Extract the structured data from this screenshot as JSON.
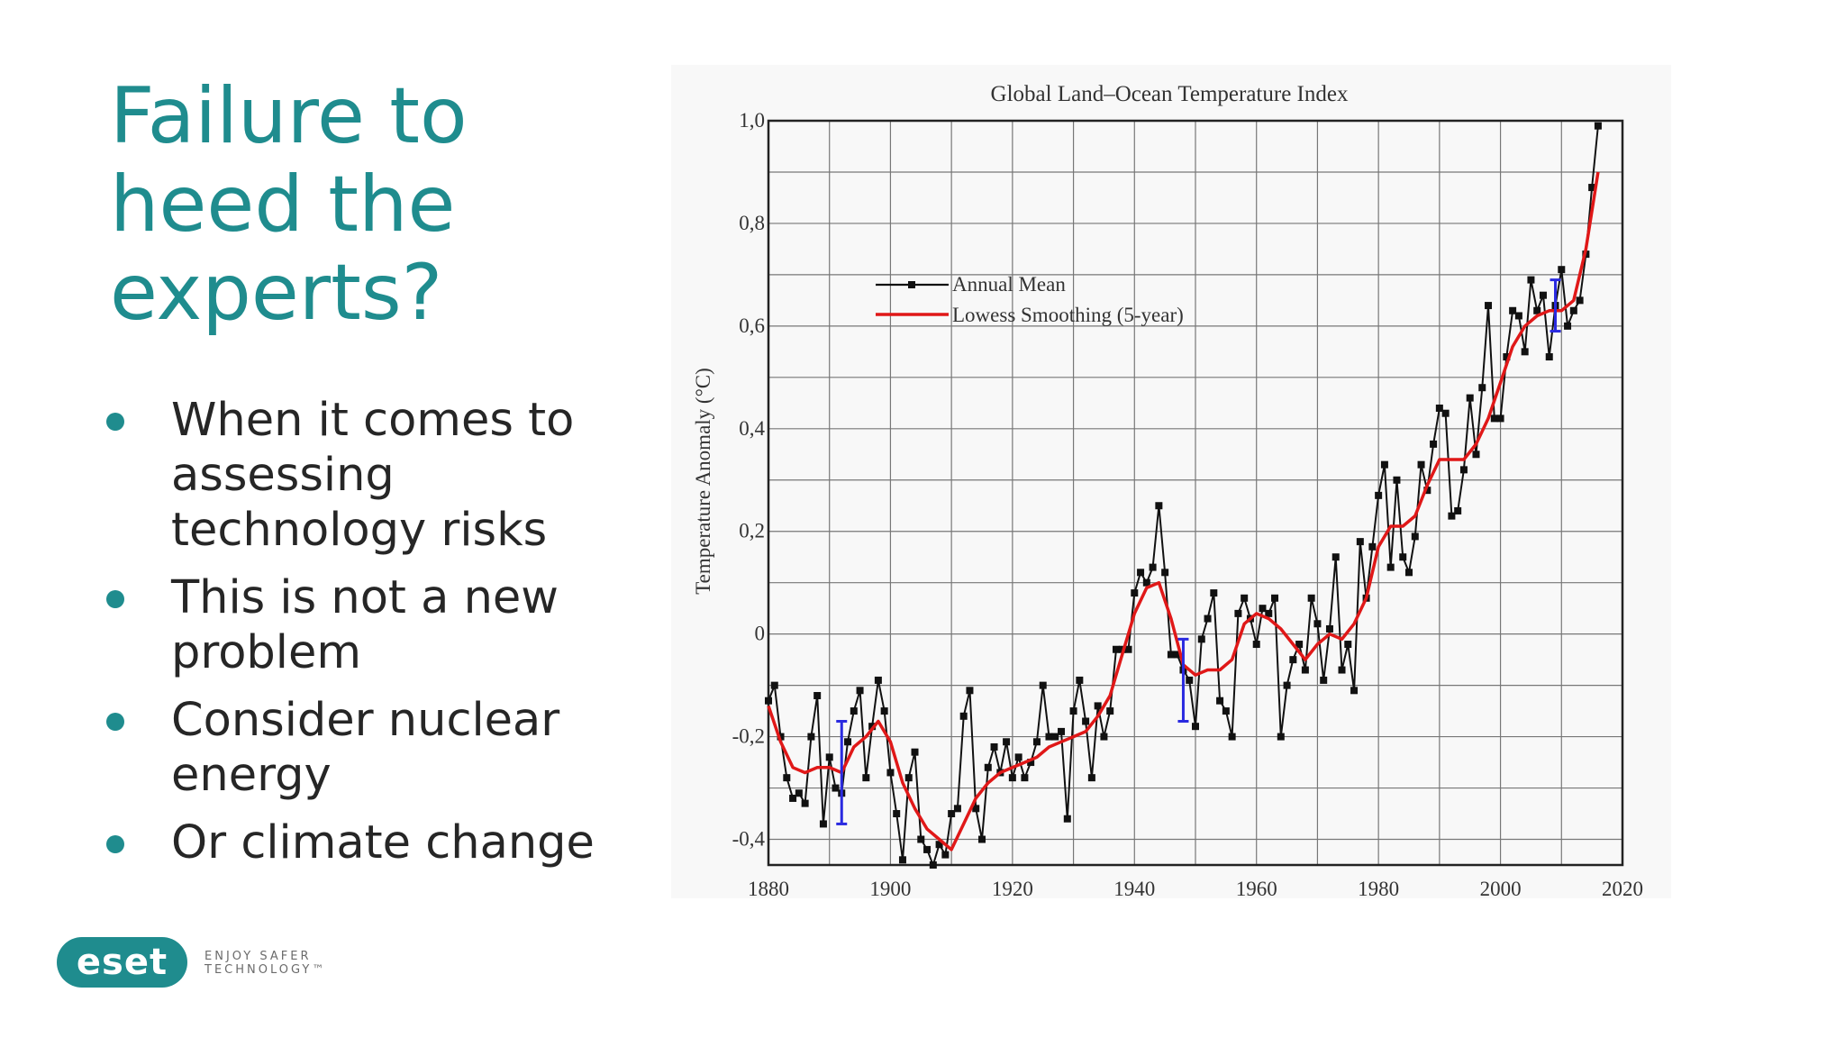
{
  "slide": {
    "title": "Failure to\nheed the\nexperts?",
    "bullets": [
      "When it comes to assessing technology risks",
      "This is not a new problem",
      "Consider nuclear energy",
      "Or climate change"
    ]
  },
  "footer": {
    "logo_text": "eset",
    "tagline_line1": "ENJOY SAFER",
    "tagline_line2": "TECHNOLOGY™"
  },
  "colors": {
    "accent": "#1f8c8e",
    "annual_mean": "#111111",
    "smoothing": "#e01818",
    "uncertainty": "#2a2ae0"
  },
  "chart_data": {
    "type": "line",
    "title": "Global Land–Ocean Temperature Index",
    "ylabel": "Temperature Anomaly (°C)",
    "xlabel": "",
    "xlim": [
      1880,
      2020
    ],
    "ylim": [
      -0.45,
      1.0
    ],
    "x_ticks": [
      1880,
      1900,
      1920,
      1940,
      1960,
      1980,
      2000,
      2020
    ],
    "y_ticks": [
      {
        "value": 1.0,
        "label": "1,0"
      },
      {
        "value": 0.8,
        "label": "0,8"
      },
      {
        "value": 0.6,
        "label": "0,6"
      },
      {
        "value": 0.4,
        "label": "0,4"
      },
      {
        "value": 0.2,
        "label": "0,2"
      },
      {
        "value": 0.0,
        "label": "0"
      },
      {
        "value": -0.2,
        "label": "-0,2"
      },
      {
        "value": -0.4,
        "label": "-0,4"
      }
    ],
    "grid": true,
    "legend_position": "upper-left",
    "series": [
      {
        "name": "Annual Mean",
        "x": [
          1880,
          1881,
          1882,
          1883,
          1884,
          1885,
          1886,
          1887,
          1888,
          1889,
          1890,
          1891,
          1892,
          1893,
          1894,
          1895,
          1896,
          1897,
          1898,
          1899,
          1900,
          1901,
          1902,
          1903,
          1904,
          1905,
          1906,
          1907,
          1908,
          1909,
          1910,
          1911,
          1912,
          1913,
          1914,
          1915,
          1916,
          1917,
          1918,
          1919,
          1920,
          1921,
          1922,
          1923,
          1924,
          1925,
          1926,
          1927,
          1928,
          1929,
          1930,
          1931,
          1932,
          1933,
          1934,
          1935,
          1936,
          1937,
          1938,
          1939,
          1940,
          1941,
          1942,
          1943,
          1944,
          1945,
          1946,
          1947,
          1948,
          1949,
          1950,
          1951,
          1952,
          1953,
          1954,
          1955,
          1956,
          1957,
          1958,
          1959,
          1960,
          1961,
          1962,
          1963,
          1964,
          1965,
          1966,
          1967,
          1968,
          1969,
          1970,
          1971,
          1972,
          1973,
          1974,
          1975,
          1976,
          1977,
          1978,
          1979,
          1980,
          1981,
          1982,
          1983,
          1984,
          1985,
          1986,
          1987,
          1988,
          1989,
          1990,
          1991,
          1992,
          1993,
          1994,
          1995,
          1996,
          1997,
          1998,
          1999,
          2000,
          2001,
          2002,
          2003,
          2004,
          2005,
          2006,
          2007,
          2008,
          2009,
          2010,
          2011,
          2012,
          2013,
          2014,
          2015,
          2016
        ],
        "values": [
          -0.13,
          -0.1,
          -0.2,
          -0.28,
          -0.32,
          -0.31,
          -0.33,
          -0.2,
          -0.12,
          -0.37,
          -0.24,
          -0.3,
          -0.31,
          -0.21,
          -0.15,
          -0.11,
          -0.28,
          -0.18,
          -0.09,
          -0.15,
          -0.27,
          -0.35,
          -0.44,
          -0.28,
          -0.23,
          -0.4,
          -0.42,
          -0.45,
          -0.41,
          -0.43,
          -0.35,
          -0.34,
          -0.16,
          -0.11,
          -0.34,
          -0.4,
          -0.26,
          -0.22,
          -0.27,
          -0.21,
          -0.28,
          -0.24,
          -0.28,
          -0.25,
          -0.21,
          -0.1,
          -0.2,
          -0.2,
          -0.19,
          -0.36,
          -0.15,
          -0.09,
          -0.17,
          -0.28,
          -0.14,
          -0.2,
          -0.15,
          -0.03,
          -0.03,
          -0.03,
          0.08,
          0.12,
          0.1,
          0.13,
          0.25,
          0.12,
          -0.04,
          -0.04,
          -0.07,
          -0.09,
          -0.18,
          -0.01,
          0.03,
          0.08,
          -0.13,
          -0.15,
          -0.2,
          0.04,
          0.07,
          0.03,
          -0.02,
          0.05,
          0.04,
          0.07,
          -0.2,
          -0.1,
          -0.05,
          -0.02,
          -0.07,
          0.07,
          0.02,
          -0.09,
          0.01,
          0.15,
          -0.07,
          -0.02,
          -0.11,
          0.18,
          0.07,
          0.17,
          0.27,
          0.33,
          0.13,
          0.3,
          0.15,
          0.12,
          0.19,
          0.33,
          0.28,
          0.37,
          0.44,
          0.43,
          0.23,
          0.24,
          0.32,
          0.46,
          0.35,
          0.48,
          0.64,
          0.42,
          0.42,
          0.54,
          0.63,
          0.62,
          0.55,
          0.69,
          0.63,
          0.66,
          0.54,
          0.64,
          0.71,
          0.6,
          0.63,
          0.65,
          0.74,
          0.87,
          0.99
        ]
      },
      {
        "name": "Lowess Smoothing (5-year)",
        "x": [
          1880,
          1882,
          1884,
          1886,
          1888,
          1890,
          1892,
          1894,
          1896,
          1898,
          1900,
          1902,
          1904,
          1906,
          1908,
          1910,
          1912,
          1914,
          1916,
          1918,
          1920,
          1922,
          1924,
          1926,
          1928,
          1930,
          1932,
          1934,
          1936,
          1938,
          1940,
          1942,
          1944,
          1946,
          1948,
          1950,
          1952,
          1954,
          1956,
          1958,
          1960,
          1962,
          1964,
          1966,
          1968,
          1970,
          1972,
          1974,
          1976,
          1978,
          1980,
          1982,
          1984,
          1986,
          1988,
          1990,
          1992,
          1994,
          1996,
          1998,
          2000,
          2002,
          2004,
          2006,
          2008,
          2010,
          2012,
          2014,
          2016
        ],
        "values": [
          -0.14,
          -0.21,
          -0.26,
          -0.27,
          -0.26,
          -0.26,
          -0.27,
          -0.22,
          -0.2,
          -0.17,
          -0.21,
          -0.29,
          -0.34,
          -0.38,
          -0.4,
          -0.42,
          -0.37,
          -0.32,
          -0.29,
          -0.27,
          -0.26,
          -0.25,
          -0.24,
          -0.22,
          -0.21,
          -0.2,
          -0.19,
          -0.16,
          -0.12,
          -0.04,
          0.04,
          0.09,
          0.1,
          0.03,
          -0.06,
          -0.08,
          -0.07,
          -0.07,
          -0.05,
          0.02,
          0.04,
          0.03,
          0.01,
          -0.02,
          -0.05,
          -0.02,
          0.0,
          -0.01,
          0.02,
          0.07,
          0.17,
          0.21,
          0.21,
          0.23,
          0.29,
          0.34,
          0.34,
          0.34,
          0.37,
          0.42,
          0.49,
          0.56,
          0.6,
          0.62,
          0.63,
          0.63,
          0.65,
          0.75,
          0.9
        ]
      }
    ],
    "uncertainty_bars": [
      {
        "x": 1892,
        "low": -0.37,
        "high": -0.17
      },
      {
        "x": 1948,
        "low": -0.17,
        "high": -0.01
      },
      {
        "x": 2009,
        "low": 0.59,
        "high": 0.69
      }
    ]
  }
}
